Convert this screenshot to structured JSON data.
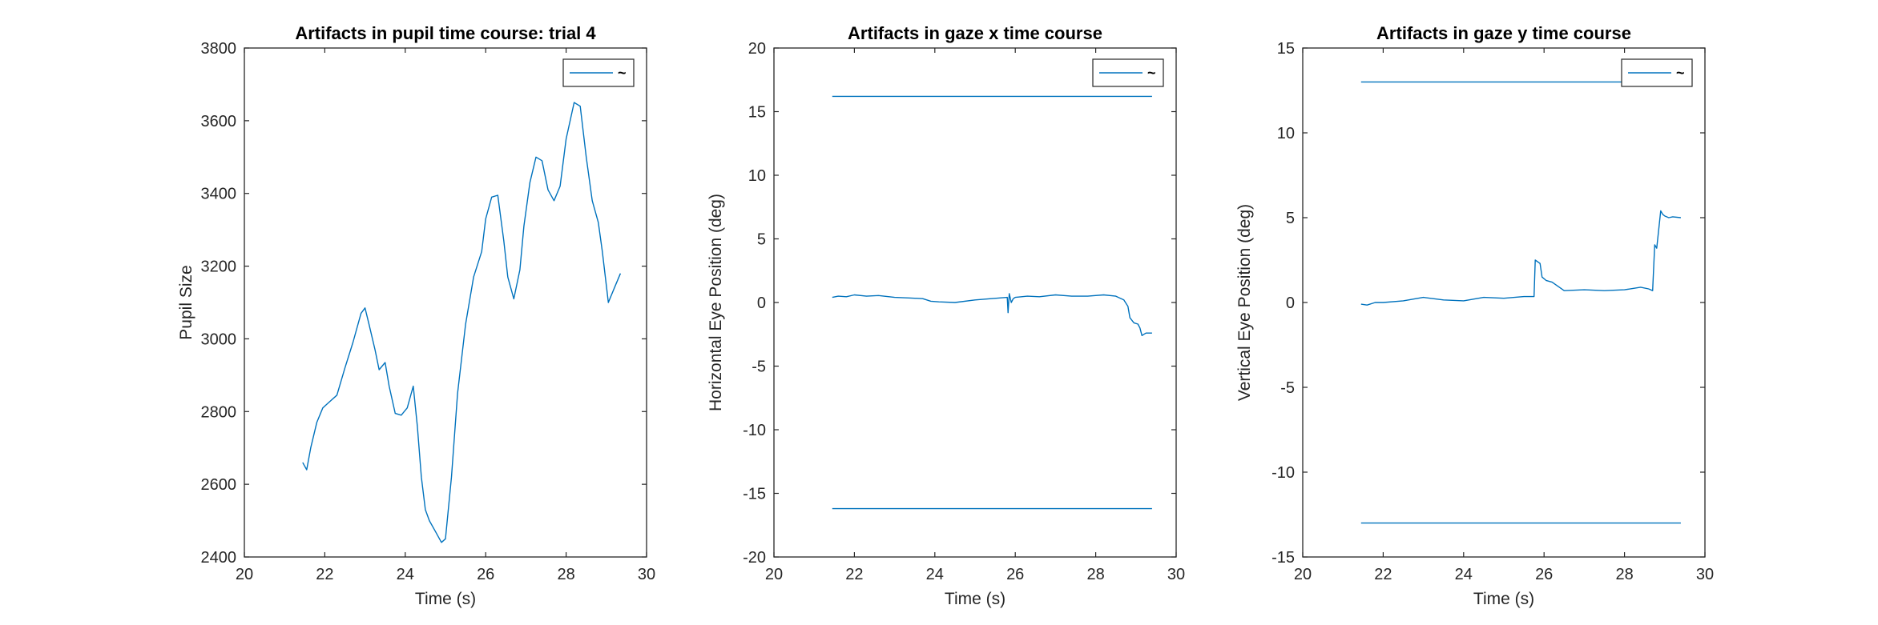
{
  "chart_data": [
    {
      "type": "line",
      "title": "Artifacts in pupil time course: trial 4",
      "xlabel": "Time (s)",
      "ylabel": "Pupil Size",
      "xlim": [
        20,
        30
      ],
      "ylim": [
        2400,
        3800
      ],
      "xticks": [
        20,
        22,
        24,
        26,
        28,
        30
      ],
      "yticks": [
        2400,
        2600,
        2800,
        3000,
        3200,
        3400,
        3600,
        3800
      ],
      "legend": {
        "position": "top-right",
        "entries": [
          "~"
        ]
      },
      "series": [
        {
          "color": "#0072BD",
          "x": [
            21.45,
            21.55,
            21.65,
            21.8,
            21.95,
            22.1,
            22.3,
            22.5,
            22.7,
            22.9,
            23.0,
            23.1,
            23.25,
            23.35,
            23.5,
            23.6,
            23.75,
            23.9,
            24.05,
            24.2,
            24.3,
            24.4,
            24.5,
            24.6,
            24.75,
            24.9,
            25.0,
            25.15,
            25.3,
            25.5,
            25.7,
            25.9,
            26.0,
            26.15,
            26.3,
            26.45,
            26.55,
            26.7,
            26.85,
            26.95,
            27.1,
            27.25,
            27.4,
            27.55,
            27.7,
            27.85,
            28.0,
            28.2,
            28.35,
            28.5,
            28.65,
            28.8,
            28.9,
            29.05,
            29.2,
            29.35
          ],
          "y": [
            2660,
            2640,
            2700,
            2770,
            2810,
            2825,
            2845,
            2920,
            2990,
            3070,
            3085,
            3040,
            2970,
            2915,
            2935,
            2870,
            2795,
            2790,
            2810,
            2870,
            2760,
            2620,
            2530,
            2500,
            2470,
            2440,
            2450,
            2620,
            2850,
            3040,
            3170,
            3240,
            3330,
            3390,
            3395,
            3270,
            3170,
            3110,
            3190,
            3310,
            3430,
            3500,
            3490,
            3410,
            3380,
            3420,
            3550,
            3650,
            3640,
            3500,
            3380,
            3320,
            3240,
            3100,
            3140,
            3180
          ]
        }
      ]
    },
    {
      "type": "line",
      "title": "Artifacts in gaze x time course",
      "xlabel": "Time (s)",
      "ylabel": "Horizontal Eye Position (deg)",
      "xlim": [
        20,
        30
      ],
      "ylim": [
        -20,
        20
      ],
      "xticks": [
        20,
        22,
        24,
        26,
        28,
        30
      ],
      "yticks": [
        -20,
        -15,
        -10,
        -5,
        0,
        5,
        10,
        15,
        20
      ],
      "legend": {
        "position": "top-right",
        "entries": [
          "~"
        ]
      },
      "series": [
        {
          "color": "#0072BD",
          "x": [
            21.45,
            21.6,
            21.8,
            22.0,
            22.3,
            22.6,
            23.0,
            23.4,
            23.7,
            23.9,
            24.1,
            24.5,
            25.0,
            25.4,
            25.8,
            25.82,
            25.85,
            25.9,
            25.95,
            26.0,
            26.3,
            26.6,
            27.0,
            27.4,
            27.8,
            28.2,
            28.5,
            28.7,
            28.8,
            28.85,
            28.95,
            29.05,
            29.1,
            29.15,
            29.25,
            29.4
          ],
          "y": [
            0.4,
            0.5,
            0.45,
            0.6,
            0.5,
            0.55,
            0.4,
            0.35,
            0.3,
            0.1,
            0.05,
            0.0,
            0.2,
            0.3,
            0.4,
            -0.8,
            0.7,
            0.0,
            0.3,
            0.4,
            0.5,
            0.45,
            0.6,
            0.5,
            0.5,
            0.6,
            0.5,
            0.2,
            -0.3,
            -1.2,
            -1.6,
            -1.7,
            -2.0,
            -2.6,
            -2.4,
            -2.4
          ]
        },
        {
          "color": "#0072BD",
          "x": [
            21.45,
            29.4
          ],
          "y": [
            16.2,
            16.2
          ]
        },
        {
          "color": "#0072BD",
          "x": [
            21.45,
            29.4
          ],
          "y": [
            -16.2,
            -16.2
          ]
        }
      ]
    },
    {
      "type": "line",
      "title": "Artifacts in gaze y time course",
      "xlabel": "Time (s)",
      "ylabel": "Vertical Eye Position (deg)",
      "xlim": [
        20,
        30
      ],
      "ylim": [
        -15,
        15
      ],
      "xticks": [
        20,
        22,
        24,
        26,
        28,
        30
      ],
      "yticks": [
        -15,
        -10,
        -5,
        0,
        5,
        10,
        15
      ],
      "legend": {
        "position": "top-right",
        "entries": [
          "~"
        ]
      },
      "series": [
        {
          "color": "#0072BD",
          "x": [
            21.45,
            21.6,
            21.8,
            22.0,
            22.5,
            23.0,
            23.5,
            24.0,
            24.5,
            25.0,
            25.5,
            25.75,
            25.78,
            25.9,
            25.95,
            26.05,
            26.2,
            26.5,
            27.0,
            27.5,
            28.0,
            28.4,
            28.6,
            28.7,
            28.75,
            28.8,
            28.9,
            28.95,
            29.0,
            29.1,
            29.2,
            29.4
          ],
          "y": [
            -0.1,
            -0.15,
            0.0,
            0.0,
            0.1,
            0.3,
            0.15,
            0.1,
            0.3,
            0.25,
            0.35,
            0.35,
            2.5,
            2.3,
            1.5,
            1.3,
            1.2,
            0.7,
            0.75,
            0.7,
            0.75,
            0.9,
            0.8,
            0.7,
            3.4,
            3.2,
            5.4,
            5.2,
            5.1,
            5.0,
            5.05,
            5.0
          ]
        },
        {
          "color": "#0072BD",
          "x": [
            21.45,
            29.4
          ],
          "y": [
            13.0,
            13.0
          ]
        },
        {
          "color": "#0072BD",
          "x": [
            21.45,
            29.4
          ],
          "y": [
            -13.0,
            -13.0
          ]
        }
      ]
    }
  ]
}
